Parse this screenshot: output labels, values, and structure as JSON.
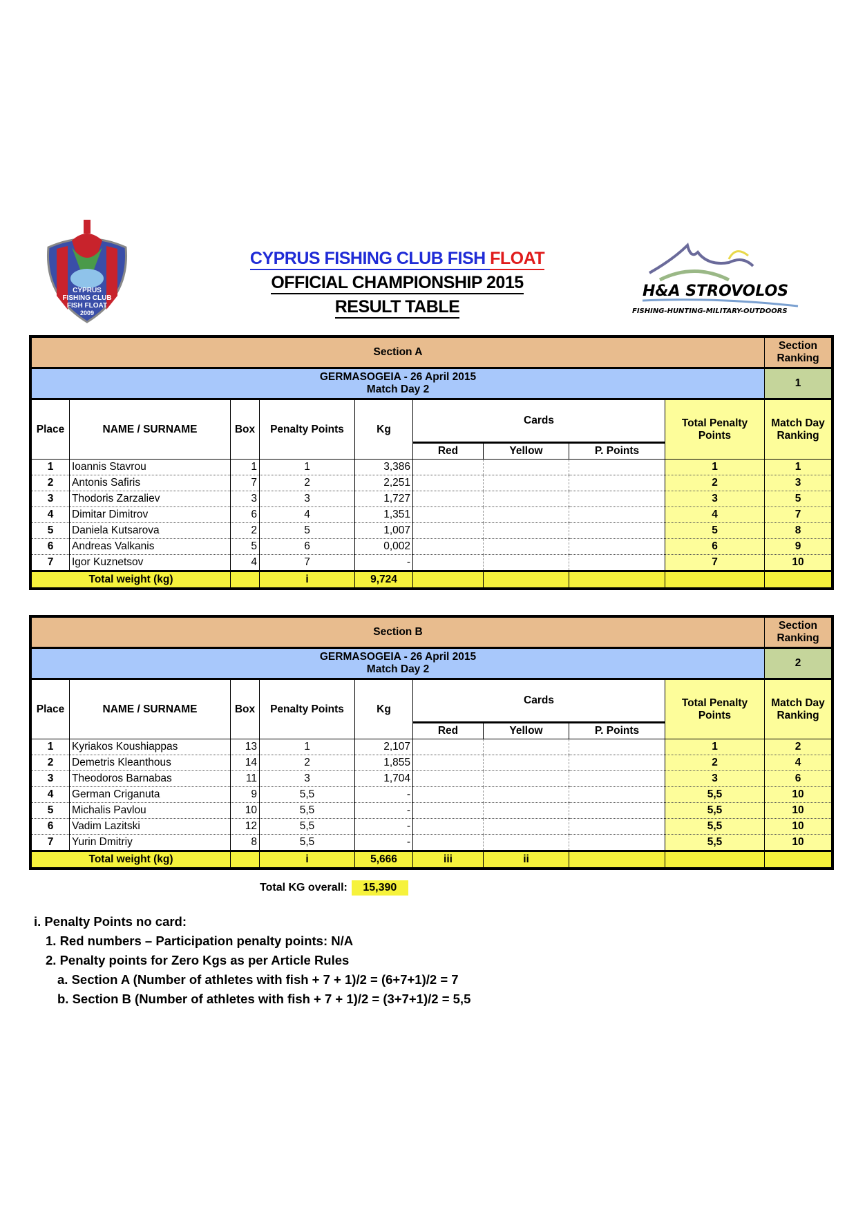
{
  "header": {
    "title_blue": "CYPRUS FISHING CLUB FISH ",
    "title_red": "FLOAT",
    "subtitle": "OFFICIAL CHAMPIONSHIP 2015",
    "table_title": "RESULT TABLE"
  },
  "logos": {
    "left": "CYPRUS FISHING CLUB FISH FLOAT 2009",
    "right_name": "H&A STROVOLOS",
    "right_tagline": "FISHING-HUNTING-MILITARY-OUTDOORS"
  },
  "columns": {
    "place": "Place",
    "name": "NAME / SURNAME",
    "box": "Box",
    "penalty": "Penalty Points",
    "kg": "Kg",
    "cards": "Cards",
    "red": "Red",
    "yellow": "Yellow",
    "ppoints": "P. Points",
    "total_penalty": "Total Penalty Points",
    "match_day_ranking": "Match Day Ranking",
    "section_ranking": "Section Ranking",
    "total_weight": "Total weight (kg)"
  },
  "sections": [
    {
      "name": "Section A",
      "venue": "GERMASOGEIA - 26 April 2015",
      "match_day": "Match Day 2",
      "section_ranking": "1",
      "rows": [
        {
          "place": "1",
          "name": "Ioannis Stavrou",
          "box": "1",
          "penalty": "1",
          "kg": "3,386",
          "red": "",
          "yellow": "",
          "pp": "",
          "total": "1",
          "rank": "1"
        },
        {
          "place": "2",
          "name": "Antonis Safiris",
          "box": "7",
          "penalty": "2",
          "kg": "2,251",
          "red": "",
          "yellow": "",
          "pp": "",
          "total": "2",
          "rank": "3"
        },
        {
          "place": "3",
          "name": "Thodoris Zarzaliev",
          "box": "3",
          "penalty": "3",
          "kg": "1,727",
          "red": "",
          "yellow": "",
          "pp": "",
          "total": "3",
          "rank": "5"
        },
        {
          "place": "4",
          "name": "Dimitar Dimitrov",
          "box": "6",
          "penalty": "4",
          "kg": "1,351",
          "red": "",
          "yellow": "",
          "pp": "",
          "total": "4",
          "rank": "7"
        },
        {
          "place": "5",
          "name": "Daniela Kutsarova",
          "box": "2",
          "penalty": "5",
          "kg": "1,007",
          "red": "",
          "yellow": "",
          "pp": "",
          "total": "5",
          "rank": "8"
        },
        {
          "place": "6",
          "name": "Andreas Valkanis",
          "box": "5",
          "penalty": "6",
          "kg": "0,002",
          "red": "",
          "yellow": "",
          "pp": "",
          "total": "6",
          "rank": "9"
        },
        {
          "place": "7",
          "name": "Igor Kuznetsov",
          "box": "4",
          "penalty": "7",
          "kg": "-",
          "red": "",
          "yellow": "",
          "pp": "",
          "total": "7",
          "rank": "10"
        }
      ],
      "totals": {
        "penalty": "i",
        "kg": "9,724",
        "red": "",
        "yellow": ""
      }
    },
    {
      "name": "Section B",
      "venue": "GERMASOGEIA - 26 April 2015",
      "match_day": "Match Day 2",
      "section_ranking": "2",
      "rows": [
        {
          "place": "1",
          "name": "Kyriakos Koushiappas",
          "box": "13",
          "penalty": "1",
          "kg": "2,107",
          "red": "",
          "yellow": "",
          "pp": "",
          "total": "1",
          "rank": "2"
        },
        {
          "place": "2",
          "name": "Demetris  Kleanthous",
          "box": "14",
          "penalty": "2",
          "kg": "1,855",
          "red": "",
          "yellow": "",
          "pp": "",
          "total": "2",
          "rank": "4"
        },
        {
          "place": "3",
          "name": "Theodoros Barnabas",
          "box": "11",
          "penalty": "3",
          "kg": "1,704",
          "red": "",
          "yellow": "",
          "pp": "",
          "total": "3",
          "rank": "6"
        },
        {
          "place": "4",
          "name": "German Criganuta",
          "box": "9",
          "penalty": "5,5",
          "kg": "-",
          "red": "",
          "yellow": "",
          "pp": "",
          "total": "5,5",
          "rank": "10"
        },
        {
          "place": "5",
          "name": "Michalis Pavlou",
          "box": "10",
          "penalty": "5,5",
          "kg": "-",
          "red": "",
          "yellow": "",
          "pp": "",
          "total": "5,5",
          "rank": "10"
        },
        {
          "place": "6",
          "name": "Vadim Lazitski",
          "box": "12",
          "penalty": "5,5",
          "kg": "-",
          "red": "",
          "yellow": "",
          "pp": "",
          "total": "5,5",
          "rank": "10"
        },
        {
          "place": "7",
          "name": "Yurin Dmitriy",
          "box": "8",
          "penalty": "5,5",
          "kg": "-",
          "red": "",
          "yellow": "",
          "pp": "",
          "total": "5,5",
          "rank": "10"
        }
      ],
      "totals": {
        "penalty": "i",
        "kg": "5,666",
        "red": "iii",
        "yellow": "ii"
      }
    }
  ],
  "overall": {
    "label": "Total KG overall:",
    "value": "15,390"
  },
  "notes": [
    "i. Penalty Points no card:",
    "1. Red numbers – Participation  penalty points: N/A",
    "2. Penalty points for Zero Kgs as per Article Rules",
    "a. Section A (Number of athletes with fish + 7 + 1)/2 = (6+7+1)/2 = 7",
    "b. Section B (Number of athletes with fish + 7 + 1)/2 = (3+7+1)/2 = 5,5"
  ]
}
